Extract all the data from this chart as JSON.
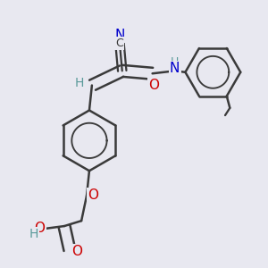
{
  "background_color": "#e8e8f0",
  "bond_color": "#3a3a3a",
  "bond_width": 1.8,
  "atom_colors": {
    "N": "#0000cc",
    "O": "#cc0000",
    "C": "#3a3a3a",
    "H": "#5a9a9a"
  },
  "font_size": 10,
  "figsize": [
    3.0,
    3.0
  ],
  "dpi": 100
}
